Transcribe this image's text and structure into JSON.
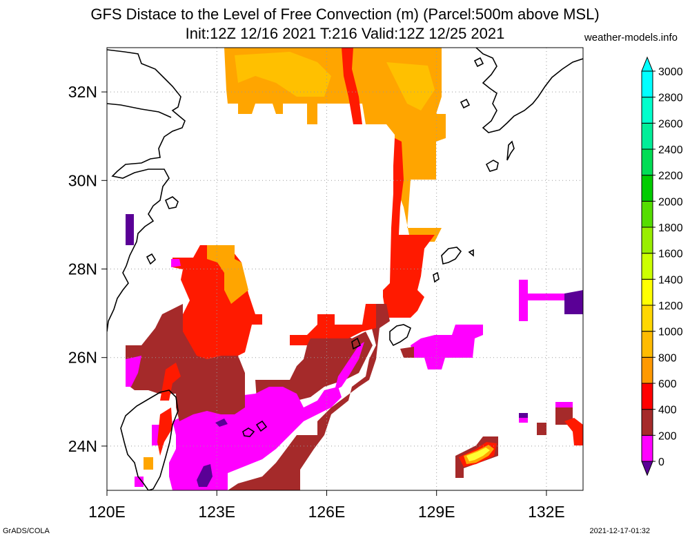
{
  "title_line1": "GFS Distace to the Level of Free Convection (m) (Parcel:500m above MSL)",
  "title_line2": "Init:12Z 12/16 2021 T:216 Valid:12Z 12/25 2021",
  "credit": "weather-models.info",
  "footer_left": "GrADS/COLA",
  "footer_right": "2021-12-17-01:32",
  "map": {
    "lon_range": [
      120,
      133
    ],
    "lat_range": [
      23,
      33
    ],
    "x_ticks": [
      {
        "value": 120,
        "label": "120E"
      },
      {
        "value": 123,
        "label": "123E"
      },
      {
        "value": 126,
        "label": "126E"
      },
      {
        "value": 129,
        "label": "129E"
      },
      {
        "value": 132,
        "label": "132E"
      }
    ],
    "y_ticks": [
      {
        "value": 24,
        "label": "24N"
      },
      {
        "value": 26,
        "label": "26N"
      },
      {
        "value": 28,
        "label": "28N"
      },
      {
        "value": 30,
        "label": "30N"
      },
      {
        "value": 32,
        "label": "32N"
      }
    ],
    "grid": true
  },
  "colorbar": {
    "levels": [
      "0",
      "200",
      "400",
      "600",
      "800",
      "1000",
      "1200",
      "1400",
      "1600",
      "1800",
      "2000",
      "2200",
      "2400",
      "2600",
      "2800",
      "3000"
    ],
    "colors": [
      "#5a0096",
      "#ff00ff",
      "#a52a2a",
      "#ff0000",
      "#ff9900",
      "#ffbb00",
      "#ffd700",
      "#ffff00",
      "#ccff00",
      "#99ee00",
      "#55dd00",
      "#00cc00",
      "#00dd55",
      "#00ee99",
      "#00ffcc",
      "#00ffff"
    ],
    "colors_top": "#00ffff",
    "under_color": "#5a0096",
    "over_color": "#00ffff"
  }
}
